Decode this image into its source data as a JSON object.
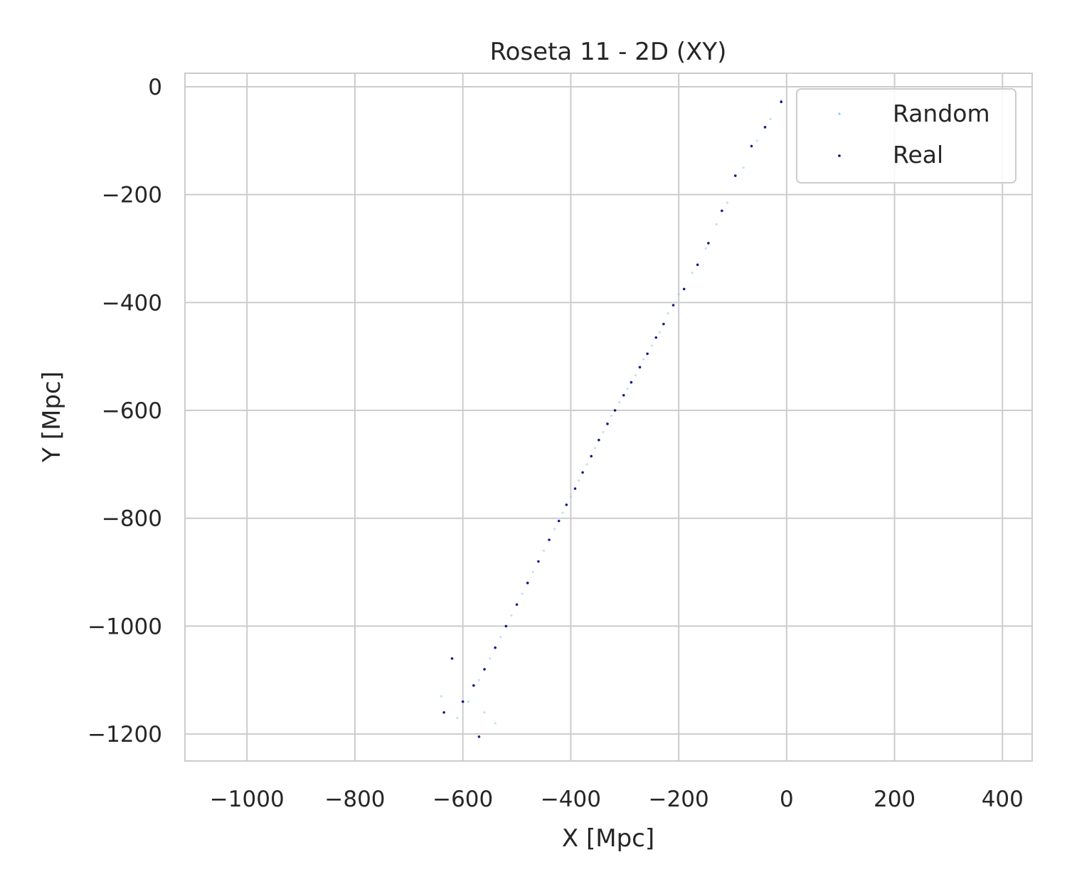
{
  "chart_data": {
    "type": "scatter",
    "title": "Roseta 11 - 2D (XY)",
    "xlabel": "X [Mpc]",
    "ylabel": "Y [Mpc]",
    "xlim": [
      -1115,
      455
    ],
    "ylim": [
      -1250,
      25
    ],
    "xticks": [
      -1000,
      -800,
      -600,
      -400,
      -200,
      0,
      200,
      400
    ],
    "xtick_labels": [
      "−1000",
      "−800",
      "−600",
      "−400",
      "−200",
      "0",
      "200",
      "400"
    ],
    "yticks": [
      0,
      -200,
      -400,
      -600,
      -800,
      -1000,
      -1200
    ],
    "ytick_labels": [
      "0",
      "−200",
      "−400",
      "−600",
      "−800",
      "−1000",
      "−1200"
    ],
    "grid": true,
    "legend_position": "top-right",
    "series": [
      {
        "name": "Random",
        "color": "#87CEEB",
        "points": [
          [
            -10,
            -25
          ],
          [
            -30,
            -60
          ],
          [
            -55,
            -100
          ],
          [
            -80,
            -150
          ],
          [
            -110,
            -215
          ],
          [
            -130,
            -255
          ],
          [
            -150,
            -300
          ],
          [
            -175,
            -345
          ],
          [
            -200,
            -385
          ],
          [
            -220,
            -420
          ],
          [
            -235,
            -455
          ],
          [
            -250,
            -480
          ],
          [
            -265,
            -505
          ],
          [
            -280,
            -535
          ],
          [
            -295,
            -560
          ],
          [
            -310,
            -585
          ],
          [
            -325,
            -610
          ],
          [
            -340,
            -640
          ],
          [
            -355,
            -670
          ],
          [
            -370,
            -700
          ],
          [
            -385,
            -730
          ],
          [
            -400,
            -760
          ],
          [
            -415,
            -790
          ],
          [
            -430,
            -820
          ],
          [
            -450,
            -860
          ],
          [
            -470,
            -900
          ],
          [
            -490,
            -940
          ],
          [
            -510,
            -980
          ],
          [
            -530,
            -1020
          ],
          [
            -550,
            -1060
          ],
          [
            -570,
            -1100
          ],
          [
            -590,
            -1140
          ],
          [
            -610,
            -1170
          ],
          [
            -560,
            -1160
          ],
          [
            -540,
            -1180
          ],
          [
            -640,
            -1130
          ]
        ]
      },
      {
        "name": "Real",
        "color": "#000080",
        "points": [
          [
            -10,
            -28
          ],
          [
            -40,
            -75
          ],
          [
            -65,
            -110
          ],
          [
            -95,
            -165
          ],
          [
            -120,
            -230
          ],
          [
            -145,
            -290
          ],
          [
            -165,
            -330
          ],
          [
            -190,
            -375
          ],
          [
            -210,
            -405
          ],
          [
            -228,
            -440
          ],
          [
            -242,
            -465
          ],
          [
            -258,
            -495
          ],
          [
            -272,
            -520
          ],
          [
            -288,
            -548
          ],
          [
            -302,
            -572
          ],
          [
            -318,
            -600
          ],
          [
            -332,
            -625
          ],
          [
            -348,
            -655
          ],
          [
            -362,
            -685
          ],
          [
            -378,
            -715
          ],
          [
            -392,
            -745
          ],
          [
            -408,
            -775
          ],
          [
            -422,
            -805
          ],
          [
            -440,
            -840
          ],
          [
            -460,
            -880
          ],
          [
            -480,
            -920
          ],
          [
            -500,
            -960
          ],
          [
            -520,
            -1000
          ],
          [
            -540,
            -1040
          ],
          [
            -560,
            -1080
          ],
          [
            -580,
            -1110
          ],
          [
            -600,
            -1140
          ],
          [
            -620,
            -1060
          ],
          [
            -635,
            -1160
          ],
          [
            -570,
            -1205
          ]
        ]
      }
    ]
  }
}
